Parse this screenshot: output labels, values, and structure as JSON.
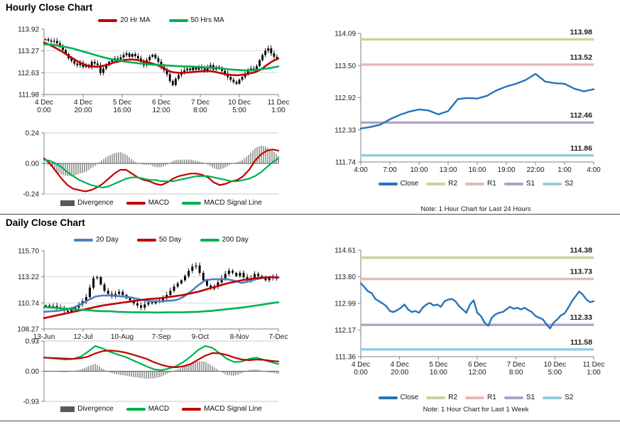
{
  "page": {
    "hourly_title": "Hourly Close Chart",
    "daily_title": "Daily Close Chart"
  },
  "chart_data": [
    {
      "id": "hourly-price",
      "type": "candlestick",
      "title": "Hourly Close Chart",
      "y_min": 111.98,
      "y_max": 113.92,
      "y_ticks": [
        "113.92",
        "113.27",
        "112.63",
        "111.98"
      ],
      "x_ticks": [
        [
          "4 Dec",
          "0:00"
        ],
        [
          "4 Dec",
          "20:00"
        ],
        [
          "5 Dec",
          "16:00"
        ],
        [
          "6 Dec",
          "12:00"
        ],
        [
          "7 Dec",
          "8:00"
        ],
        [
          "10 Dec",
          "5:00"
        ],
        [
          "11 Dec",
          "1:00"
        ]
      ],
      "candle_color": "#000000",
      "wick": 0.09,
      "closes": [
        113.62,
        113.58,
        113.55,
        113.57,
        113.5,
        113.42,
        113.3,
        113.18,
        113.05,
        112.98,
        112.9,
        112.85,
        112.92,
        112.8,
        112.86,
        112.78,
        112.95,
        112.9,
        112.85,
        112.62,
        112.75,
        112.85,
        112.95,
        113.0,
        113.05,
        113.02,
        113.08,
        113.15,
        113.2,
        113.1,
        113.18,
        113.12,
        113.05,
        112.95,
        112.85,
        113.0,
        113.1,
        113.16,
        113.06,
        112.95,
        112.8,
        112.7,
        112.58,
        112.38,
        112.26,
        112.45,
        112.56,
        112.65,
        112.7,
        112.75,
        112.7,
        112.78,
        112.72,
        112.8,
        112.75,
        112.7,
        112.78,
        112.85,
        112.72,
        112.8,
        112.75,
        112.68,
        112.6,
        112.5,
        112.42,
        112.35,
        112.3,
        112.42,
        112.5,
        112.6,
        112.68,
        112.75,
        112.7,
        112.82,
        113.0,
        113.15,
        113.28,
        113.35,
        113.2,
        113.1,
        113.05
      ],
      "series": [
        {
          "name": "20 Hr MA",
          "color": "#C00000",
          "values": [
            113.52,
            113.45,
            113.36,
            113.26,
            113.15,
            113.04,
            112.94,
            112.86,
            112.81,
            112.8,
            112.83,
            112.87,
            112.93,
            112.97,
            113.01,
            113.02,
            113.0,
            112.96,
            112.92,
            112.87,
            112.8,
            112.7,
            112.64,
            112.62,
            112.63,
            112.64,
            112.66,
            112.67,
            112.68,
            112.66,
            112.62,
            112.58,
            112.56,
            112.55,
            112.57,
            112.6,
            112.64,
            112.72,
            112.85,
            112.97,
            113.05
          ]
        },
        {
          "name": "50 Hrs MA",
          "color": "#00B050",
          "values": [
            113.47,
            113.46,
            113.44,
            113.41,
            113.38,
            113.34,
            113.29,
            113.24,
            113.19,
            113.14,
            113.09,
            113.05,
            113.01,
            112.98,
            112.95,
            112.93,
            112.91,
            112.89,
            112.87,
            112.86,
            112.85,
            112.84,
            112.83,
            112.82,
            112.81,
            112.81,
            112.8,
            112.79,
            112.78,
            112.77,
            112.76,
            112.74,
            112.72,
            112.71,
            112.7,
            112.7,
            112.71,
            112.73,
            112.75,
            112.78,
            112.81
          ]
        }
      ],
      "legend": [
        {
          "label": "20 Hr MA",
          "color": "#C00000",
          "style": "line"
        },
        {
          "label": "50 Hrs MA",
          "color": "#00B050",
          "style": "line"
        }
      ]
    },
    {
      "id": "hourly-macd",
      "type": "macd",
      "y_min": -0.24,
      "y_max": 0.24,
      "y_ticks": [
        "0.24",
        "0.00",
        "-0.24"
      ],
      "divergence_color": "#595959",
      "divergence": [
        0.01,
        -0.02,
        -0.06,
        -0.09,
        -0.1,
        -0.1,
        -0.08,
        -0.07,
        -0.04,
        -0.01,
        0.03,
        0.06,
        0.08,
        0.09,
        0.07,
        0.03,
        0.0,
        -0.01,
        -0.01,
        -0.03,
        -0.03,
        -0.01,
        0.02,
        0.03,
        0.03,
        0.03,
        0.02,
        0.01,
        -0.01,
        -0.04,
        -0.05,
        -0.03,
        0.0,
        0.01,
        0.03,
        0.07,
        0.12,
        0.14,
        0.13,
        0.1,
        0.06
      ],
      "series": [
        {
          "name": "MACD",
          "color": "#C00000",
          "values": [
            0.04,
            0.0,
            -0.06,
            -0.12,
            -0.17,
            -0.2,
            -0.21,
            -0.22,
            -0.21,
            -0.19,
            -0.16,
            -0.12,
            -0.08,
            -0.05,
            -0.05,
            -0.08,
            -0.11,
            -0.13,
            -0.14,
            -0.16,
            -0.17,
            -0.15,
            -0.12,
            -0.1,
            -0.09,
            -0.08,
            -0.08,
            -0.09,
            -0.11,
            -0.15,
            -0.17,
            -0.16,
            -0.14,
            -0.13,
            -0.1,
            -0.05,
            0.02,
            0.07,
            0.1,
            0.11,
            0.1
          ]
        },
        {
          "name": "MACD Signal Line",
          "color": "#00B050",
          "values": [
            0.03,
            0.02,
            0.0,
            -0.03,
            -0.07,
            -0.1,
            -0.13,
            -0.15,
            -0.17,
            -0.18,
            -0.19,
            -0.18,
            -0.16,
            -0.14,
            -0.12,
            -0.11,
            -0.11,
            -0.12,
            -0.13,
            -0.13,
            -0.14,
            -0.14,
            -0.14,
            -0.13,
            -0.12,
            -0.11,
            -0.1,
            -0.1,
            -0.1,
            -0.11,
            -0.12,
            -0.13,
            -0.14,
            -0.14,
            -0.13,
            -0.12,
            -0.1,
            -0.07,
            -0.03,
            0.01,
            0.04
          ]
        }
      ],
      "legend": [
        {
          "label": "Divergence",
          "color": "#595959",
          "style": "box"
        },
        {
          "label": "MACD",
          "color": "#C00000",
          "style": "line"
        },
        {
          "label": "MACD Signal Line",
          "color": "#00B050",
          "style": "line"
        }
      ]
    },
    {
      "id": "hourly-pivot",
      "type": "line",
      "note": "Note: 1 Hour Chart for Last 24 Hours",
      "y_min": 111.74,
      "y_max": 114.09,
      "y_ticks": [
        "114.09",
        "113.50",
        "112.92",
        "112.33",
        "111.74"
      ],
      "x_ticks": [
        "4:00",
        "7:00",
        "10:00",
        "13:00",
        "16:00",
        "19:00",
        "22:00",
        "1:00",
        "4:00"
      ],
      "close": {
        "name": "Close",
        "color": "#2574B9",
        "values": [
          112.35,
          112.38,
          112.42,
          112.52,
          112.6,
          112.66,
          112.7,
          112.68,
          112.61,
          112.67,
          112.89,
          112.91,
          112.9,
          112.95,
          113.05,
          113.12,
          113.17,
          113.24,
          113.35,
          113.21,
          113.18,
          113.17,
          113.08,
          113.03,
          113.07
        ]
      },
      "pivots": [
        {
          "name": "R2",
          "value": 113.98,
          "label": "113.98",
          "color": "#C3D69B"
        },
        {
          "name": "R1",
          "value": 113.52,
          "label": "113.52",
          "color": "#E5B8B7"
        },
        {
          "name": "S1",
          "value": 112.46,
          "label": "112.46",
          "color": "#B2A1C7"
        },
        {
          "name": "S2",
          "value": 111.86,
          "label": "111.86",
          "color": "#92CDDC"
        }
      ],
      "legend": [
        {
          "label": "Close",
          "color": "#2574B9",
          "style": "line"
        },
        {
          "label": "R2",
          "color": "#C3D69B",
          "style": "line"
        },
        {
          "label": "R1",
          "color": "#E5B8B7",
          "style": "line"
        },
        {
          "label": "S1",
          "color": "#B2A1C7",
          "style": "line"
        },
        {
          "label": "S2",
          "color": "#92CDDC",
          "style": "line"
        }
      ]
    },
    {
      "id": "daily-price",
      "type": "candlestick",
      "title": "Daily Close Chart",
      "y_min": 108.27,
      "y_max": 115.7,
      "y_ticks": [
        "115.70",
        "113.22",
        "110.74",
        "108.27"
      ],
      "x_ticks": [
        "13-Jun",
        "12-Jul",
        "10-Aug",
        "7-Sep",
        "9-Oct",
        "8-Nov",
        "7-Dec"
      ],
      "candle_color": "#000000",
      "wick": 0.3,
      "closes": [
        110.5,
        110.42,
        110.45,
        110.3,
        110.2,
        110.0,
        109.9,
        110.1,
        110.3,
        110.6,
        110.9,
        111.3,
        112.2,
        113.1,
        113.2,
        112.5,
        111.9,
        111.6,
        111.4,
        111.6,
        111.8,
        111.5,
        111.2,
        111.0,
        110.7,
        110.5,
        110.3,
        110.6,
        110.8,
        110.7,
        110.9,
        111.0,
        111.2,
        111.5,
        111.9,
        112.3,
        112.6,
        112.9,
        113.3,
        113.8,
        114.2,
        114.3,
        113.6,
        112.9,
        112.4,
        112.1,
        112.3,
        112.7,
        113.1,
        113.5,
        113.8,
        113.6,
        113.3,
        113.6,
        113.2,
        112.9,
        113.1,
        113.5,
        113.3,
        113.2,
        112.9,
        113.1,
        113.2,
        113.1
      ],
      "series": [
        {
          "name": "20 Day",
          "color": "#4F81BD",
          "values": [
            109.9,
            109.95,
            110.0,
            110.1,
            110.3,
            110.6,
            111.0,
            111.35,
            111.45,
            111.45,
            111.4,
            111.35,
            111.25,
            111.1,
            110.95,
            110.9,
            110.9,
            110.95,
            111.0,
            111.3,
            111.8,
            112.4,
            112.9,
            113.0,
            113.0,
            113.0,
            112.85,
            112.65,
            112.8,
            113.0,
            113.15,
            113.2,
            113.2
          ]
        },
        {
          "name": "50 Day",
          "color": "#C00000",
          "values": [
            109.3,
            109.45,
            109.6,
            109.75,
            109.9,
            110.05,
            110.2,
            110.35,
            110.5,
            110.6,
            110.7,
            110.8,
            110.9,
            111.0,
            111.1,
            111.15,
            111.2,
            111.3,
            111.4,
            111.5,
            111.65,
            111.8,
            112.0,
            112.2,
            112.4,
            112.6,
            112.75,
            112.9,
            113.0,
            113.1,
            113.15,
            113.2,
            113.15
          ]
        },
        {
          "name": "200 Day",
          "color": "#00B050",
          "values": [
            110.35,
            110.3,
            110.25,
            110.2,
            110.15,
            110.1,
            110.05,
            110.0,
            109.95,
            109.95,
            109.9,
            109.88,
            109.86,
            109.85,
            109.85,
            109.84,
            109.84,
            109.85,
            109.85,
            109.86,
            109.88,
            109.9,
            109.95,
            110.0,
            110.08,
            110.15,
            110.22,
            110.3,
            110.4,
            110.5,
            110.6,
            110.72,
            110.8
          ]
        }
      ],
      "legend": [
        {
          "label": "20 Day",
          "color": "#4F81BD",
          "style": "line"
        },
        {
          "label": "50 Day",
          "color": "#C00000",
          "style": "line"
        },
        {
          "label": "200 Day",
          "color": "#00B050",
          "style": "line"
        }
      ]
    },
    {
      "id": "daily-macd",
      "type": "macd",
      "y_min": -0.93,
      "y_max": 0.93,
      "y_ticks": [
        "0.93",
        "0.00",
        "-0.93"
      ],
      "divergence_color": "#595959",
      "divergence": [
        0.0,
        -0.01,
        -0.02,
        -0.03,
        0.0,
        0.05,
        0.15,
        0.23,
        0.08,
        -0.04,
        -0.1,
        -0.13,
        -0.17,
        -0.2,
        -0.23,
        -0.22,
        -0.17,
        -0.06,
        0.03,
        0.13,
        0.23,
        0.3,
        0.3,
        0.16,
        0.0,
        -0.12,
        -0.14,
        -0.06,
        0.04,
        0.06,
        0.0,
        -0.04,
        -0.08
      ],
      "series": [
        {
          "name": "MACD",
          "color": "#00B050",
          "values": [
            0.42,
            0.4,
            0.38,
            0.36,
            0.38,
            0.45,
            0.6,
            0.78,
            0.7,
            0.6,
            0.52,
            0.45,
            0.35,
            0.25,
            0.15,
            0.06,
            0.03,
            0.08,
            0.15,
            0.28,
            0.45,
            0.65,
            0.78,
            0.72,
            0.55,
            0.38,
            0.28,
            0.3,
            0.38,
            0.42,
            0.35,
            0.28,
            0.22
          ]
        },
        {
          "name": "MACD Signal Line",
          "color": "#C00000",
          "values": [
            0.42,
            0.41,
            0.4,
            0.39,
            0.38,
            0.4,
            0.45,
            0.55,
            0.62,
            0.64,
            0.62,
            0.58,
            0.52,
            0.45,
            0.38,
            0.28,
            0.2,
            0.14,
            0.12,
            0.15,
            0.22,
            0.35,
            0.48,
            0.56,
            0.55,
            0.5,
            0.42,
            0.36,
            0.34,
            0.36,
            0.35,
            0.32,
            0.3
          ]
        }
      ],
      "legend": [
        {
          "label": "Divergence",
          "color": "#595959",
          "style": "box"
        },
        {
          "label": "MACD",
          "color": "#00B050",
          "style": "line"
        },
        {
          "label": "MACD Signal Line",
          "color": "#C00000",
          "style": "line"
        }
      ]
    },
    {
      "id": "daily-pivot",
      "type": "line",
      "note": "Note: 1 Hour Chart for Last 1 Week",
      "y_min": 111.36,
      "y_max": 114.61,
      "y_ticks": [
        "114.61",
        "113.80",
        "112.99",
        "112.17",
        "111.36"
      ],
      "x_ticks": [
        [
          "4 Dec",
          "0:00"
        ],
        [
          "4 Dec",
          "20:00"
        ],
        [
          "5 Dec",
          "16:00"
        ],
        [
          "6 Dec",
          "12:00"
        ],
        [
          "7 Dec",
          "8:00"
        ],
        [
          "10 Dec",
          "5:00"
        ],
        [
          "11 Dec",
          "1:00"
        ]
      ],
      "close": {
        "name": "Close",
        "color": "#2574B9",
        "values": [
          113.6,
          113.48,
          113.35,
          113.3,
          113.12,
          113.05,
          112.98,
          112.9,
          112.75,
          112.72,
          112.78,
          112.85,
          112.95,
          112.8,
          112.72,
          112.75,
          112.7,
          112.85,
          112.95,
          113.0,
          112.92,
          112.95,
          112.88,
          113.05,
          113.1,
          113.12,
          113.05,
          112.9,
          112.8,
          112.7,
          112.95,
          113.08,
          112.7,
          112.6,
          112.4,
          112.3,
          112.55,
          112.65,
          112.7,
          112.72,
          112.8,
          112.88,
          112.82,
          112.85,
          112.8,
          112.85,
          112.78,
          112.72,
          112.6,
          112.55,
          112.5,
          112.35,
          112.22,
          112.4,
          112.5,
          112.62,
          112.68,
          112.85,
          113.05,
          113.2,
          113.35,
          113.25,
          113.1,
          113.02,
          113.05
        ]
      },
      "pivots": [
        {
          "name": "R2",
          "value": 114.38,
          "label": "114.38",
          "color": "#C3D69B"
        },
        {
          "name": "R1",
          "value": 113.73,
          "label": "113.73",
          "color": "#E5B8B7"
        },
        {
          "name": "S1",
          "value": 112.33,
          "label": "112.33",
          "color": "#B2A1C7"
        },
        {
          "name": "S2",
          "value": 111.58,
          "label": "111.58",
          "color": "#92CDDC"
        }
      ],
      "legend": [
        {
          "label": "Close",
          "color": "#2574B9",
          "style": "line"
        },
        {
          "label": "R2",
          "color": "#C3D69B",
          "style": "line"
        },
        {
          "label": "R1",
          "color": "#E5B8B7",
          "style": "line"
        },
        {
          "label": "S1",
          "color": "#B2A1C7",
          "style": "line"
        },
        {
          "label": "S2",
          "color": "#92CDDC",
          "style": "line"
        }
      ]
    }
  ]
}
